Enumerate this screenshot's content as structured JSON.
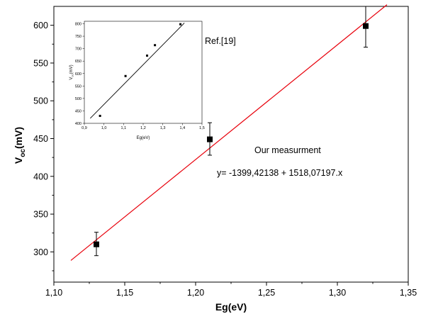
{
  "chart_data": [
    {
      "type": "scatter",
      "xlabel": "Eg(eV)",
      "ylabel_main": "V",
      "ylabel_sub": "oc",
      "ylabel_unit": "(mV)",
      "xlim": [
        1.1,
        1.35
      ],
      "ylim": [
        260,
        625
      ],
      "xticks": [
        1.1,
        1.15,
        1.2,
        1.25,
        1.3,
        1.35
      ],
      "xtick_labels": [
        "1,10",
        "1,15",
        "1,20",
        "1,25",
        "1,30",
        "1,35"
      ],
      "yticks": [
        300,
        350,
        400,
        450,
        500,
        550,
        600
      ],
      "ytick_labels": [
        "300",
        "350",
        "400",
        "450",
        "500",
        "550",
        "600"
      ],
      "grid": false,
      "series": [
        {
          "points": [
            {
              "x": 1.13,
              "y": 310,
              "err_low": 295,
              "err_high": 326
            },
            {
              "x": 1.21,
              "y": 449,
              "err_low": 428,
              "err_high": 471
            },
            {
              "x": 1.32,
              "y": 599,
              "err_low": 571,
              "err_high": 625
            }
          ],
          "marker_color": "#000000"
        }
      ],
      "fit_line": {
        "slope": 1518.07197,
        "intercept": -1399.42138,
        "x_range": [
          1.112,
          1.335
        ],
        "color": "#e8000b"
      },
      "annotations": [
        "Our measurment",
        "y= -1399,42138 + 1518,07197.x"
      ]
    },
    {
      "type": "scatter",
      "xlabel": "Eg(eV)",
      "ylabel_main": "V",
      "ylabel_sub": "oc",
      "ylabel_unit": "(mV)",
      "xlim": [
        0.9,
        1.5
      ],
      "ylim": [
        400,
        810
      ],
      "xticks": [
        0.9,
        1.0,
        1.1,
        1.2,
        1.3,
        1.4,
        1.5
      ],
      "xtick_labels": [
        "0,9",
        "1,0",
        "1,1",
        "1,2",
        "1,3",
        "1,4",
        "1,5"
      ],
      "yticks": [
        400,
        450,
        500,
        550,
        600,
        650,
        700,
        750,
        800
      ],
      "ytick_labels": [
        "400",
        "450",
        "500",
        "550",
        "600",
        "650",
        "700",
        "750",
        "800"
      ],
      "series": [
        {
          "points": [
            {
              "x": 0.98,
              "y": 430
            },
            {
              "x": 1.11,
              "y": 590
            },
            {
              "x": 1.22,
              "y": 672
            },
            {
              "x": 1.26,
              "y": 714
            },
            {
              "x": 1.39,
              "y": 798
            }
          ],
          "marker_color": "#000000"
        }
      ],
      "fit_line": {
        "x_range": [
          0.93,
          1.41
        ],
        "y_range": [
          420,
          803
        ],
        "color": "#000000"
      },
      "annotations": [
        "Ref.[19]"
      ]
    }
  ]
}
